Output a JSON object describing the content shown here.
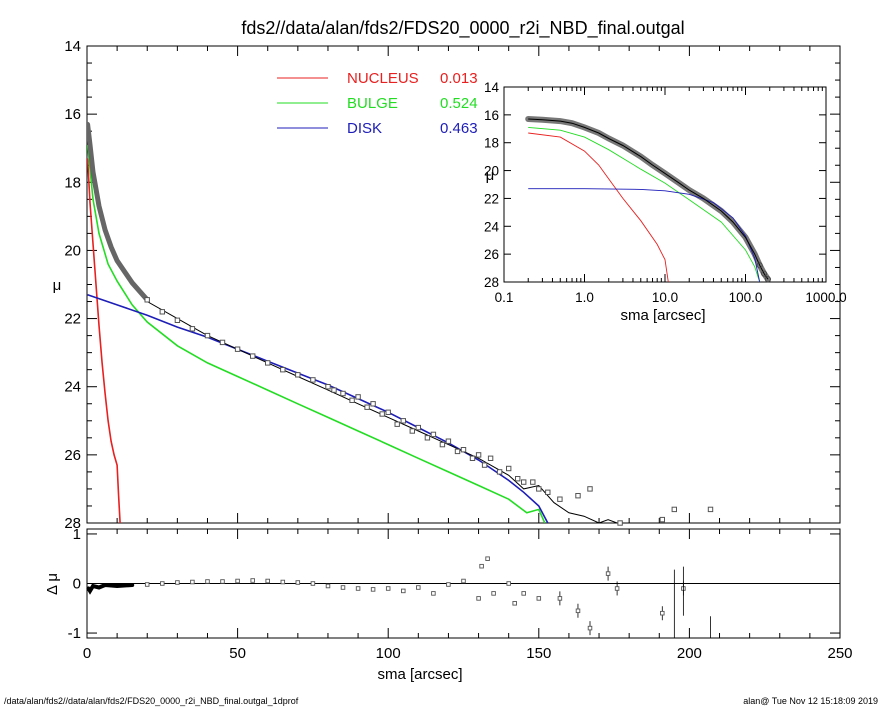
{
  "title": "fds2//data/alan/fds2/FDS20_0000_r2i_NBD_final.outgal",
  "footer_left": "/data/alan/fds2//data/alan/fds2/FDS20_0000_r2i_NBD_final.outgal_1dprof",
  "footer_right": "alan@  Tue Nov 12 15:18:09 2019",
  "colors": {
    "nucleus": "#e8201f",
    "bulge": "#22dd22",
    "disk": "#1d1db8",
    "total": "#000000",
    "data": "#555555"
  },
  "legend": [
    {
      "label": "NUCLEUS",
      "value": "0.013",
      "color": "#e8201f"
    },
    {
      "label": "BULGE",
      "value": "0.524",
      "color": "#22dd22"
    },
    {
      "label": "DISK",
      "value": "0.463",
      "color": "#1d1db8"
    }
  ],
  "chart_data": [
    {
      "type": "line",
      "xlabel": "",
      "ylabel": "μ",
      "xlim": [
        0,
        250
      ],
      "ylim": [
        28,
        14
      ],
      "xticks": [
        0,
        50,
        100,
        150,
        200,
        250
      ],
      "yticks": [
        14,
        16,
        18,
        20,
        22,
        24,
        26,
        28
      ],
      "ytick_labels": [
        "14",
        "16",
        "18",
        "20",
        "22",
        "24",
        "26",
        "28"
      ],
      "series": [
        {
          "name": "NUCLEUS 0.013",
          "x": [
            0.2,
            1,
            2,
            3,
            4,
            5,
            6,
            7,
            8,
            9,
            10,
            10.5,
            11
          ],
          "y": [
            17.3,
            18.6,
            19.8,
            21.0,
            22.2,
            23.3,
            24.2,
            25.0,
            25.6,
            26.0,
            26.3,
            27.2,
            28.0
          ]
        },
        {
          "name": "BULGE 0.524",
          "x": [
            0.2,
            1,
            2,
            4,
            7,
            10,
            15,
            20,
            30,
            40,
            50,
            60,
            70,
            80,
            90,
            100,
            110,
            120,
            130,
            140,
            146,
            150,
            152
          ],
          "y": [
            16.9,
            17.6,
            18.5,
            19.5,
            20.4,
            20.9,
            21.6,
            22.1,
            22.8,
            23.3,
            23.7,
            24.1,
            24.5,
            24.9,
            25.3,
            25.7,
            26.1,
            26.5,
            26.9,
            27.3,
            27.7,
            27.6,
            28.0
          ]
        },
        {
          "name": "DISK 0.463",
          "x": [
            0.2,
            10,
            20,
            30,
            40,
            50,
            60,
            70,
            80,
            90,
            100,
            110,
            120,
            130,
            140,
            145,
            150,
            153
          ],
          "y": [
            21.3,
            21.6,
            21.9,
            22.25,
            22.55,
            22.9,
            23.25,
            23.6,
            23.95,
            24.35,
            24.75,
            25.2,
            25.65,
            26.15,
            26.75,
            27.1,
            27.5,
            28.0
          ]
        },
        {
          "name": "",
          "x": [
            0.2,
            1,
            2,
            4,
            7,
            10,
            15,
            20,
            30,
            40,
            50,
            60,
            70,
            80,
            90,
            100,
            110,
            120,
            130,
            140,
            145,
            150,
            155,
            160,
            165,
            170,
            173,
            176
          ],
          "y": [
            16.3,
            17.0,
            17.8,
            18.8,
            19.7,
            20.3,
            21.0,
            21.5,
            22.0,
            22.5,
            22.9,
            23.3,
            23.7,
            24.1,
            24.5,
            24.9,
            25.3,
            25.7,
            26.1,
            26.6,
            27.0,
            26.9,
            27.4,
            27.7,
            27.8,
            28.0,
            27.9,
            28.0
          ]
        },
        {
          "name": "",
          "x": [
            0.2,
            1,
            2,
            3,
            4,
            6,
            8,
            10,
            15,
            20,
            25,
            30,
            35,
            40,
            45,
            50,
            55,
            60,
            65,
            70,
            75,
            80,
            82,
            85,
            88,
            90,
            93,
            95,
            98,
            100,
            103,
            105,
            108,
            110,
            113,
            115,
            118,
            120,
            123,
            125,
            128,
            130,
            132,
            134,
            137,
            140,
            143,
            145,
            148,
            150,
            153,
            157,
            163,
            167,
            177,
            191,
            195,
            207
          ],
          "y": [
            16.3,
            16.9,
            17.7,
            18.2,
            18.7,
            19.4,
            19.9,
            20.3,
            20.95,
            21.45,
            21.8,
            22.05,
            22.3,
            22.5,
            22.7,
            22.9,
            23.1,
            23.3,
            23.5,
            23.65,
            23.8,
            24.0,
            24.1,
            24.2,
            24.4,
            24.3,
            24.6,
            24.5,
            24.8,
            24.75,
            25.1,
            25.0,
            25.3,
            25.2,
            25.5,
            25.4,
            25.7,
            25.6,
            25.9,
            25.85,
            26.1,
            26.0,
            26.3,
            26.1,
            26.5,
            26.4,
            26.7,
            26.8,
            26.8,
            27.0,
            27.1,
            27.3,
            27.2,
            27.0,
            28.0,
            27.9,
            27.6,
            27.6
          ]
        }
      ]
    },
    {
      "type": "scatter",
      "xlabel": "sma [arcsec]",
      "ylabel": "Δ μ",
      "xlim": [
        0,
        250
      ],
      "ylim": [
        -1.1,
        1.1
      ],
      "xticks": [
        0,
        50,
        100,
        150,
        200,
        250
      ],
      "yticks": [
        -1,
        0,
        1
      ],
      "x": [
        0.5,
        1,
        2,
        4,
        6,
        10,
        15,
        20,
        25,
        30,
        35,
        40,
        45,
        50,
        55,
        60,
        65,
        70,
        75,
        80,
        85,
        90,
        95,
        100,
        105,
        110,
        115,
        120,
        125,
        130,
        131,
        133,
        135,
        140,
        142,
        145,
        150,
        157,
        163,
        167,
        173,
        176,
        191,
        198
      ],
      "y": [
        -0.1,
        -0.15,
        -0.05,
        -0.08,
        -0.03,
        -0.05,
        -0.03,
        -0.02,
        0.0,
        0.02,
        0.03,
        0.04,
        0.04,
        0.05,
        0.06,
        0.05,
        0.03,
        0.02,
        0.0,
        -0.05,
        -0.08,
        -0.1,
        -0.12,
        -0.1,
        -0.15,
        -0.08,
        -0.2,
        -0.02,
        0.05,
        -0.3,
        0.35,
        0.5,
        -0.2,
        0.0,
        -0.4,
        -0.2,
        -0.3,
        -0.3,
        -0.55,
        -0.9,
        0.2,
        -0.1,
        -0.6,
        -0.1
      ]
    },
    {
      "type": "line",
      "xlabel": "sma [arcsec]",
      "ylabel": "μ",
      "xscale": "log",
      "xlim": [
        0.1,
        1000
      ],
      "ylim": [
        28,
        14
      ],
      "xticks": [
        0.1,
        1,
        10,
        100,
        1000
      ],
      "xtick_labels": [
        "0.1",
        "1.0",
        "10.0",
        "100.0",
        "1000.0"
      ],
      "yticks": [
        14,
        16,
        18,
        20,
        22,
        24,
        26,
        28
      ],
      "ytick_labels": [
        "14",
        "16",
        "18",
        "20",
        "22",
        "24",
        "26",
        "28"
      ],
      "series": [
        {
          "name": "NUCLEUS",
          "x": [
            0.2,
            0.5,
            1,
            1.5,
            2,
            3,
            5,
            8,
            10,
            11
          ],
          "y": [
            17.3,
            17.6,
            18.6,
            19.6,
            20.6,
            22.0,
            23.6,
            25.3,
            26.4,
            28.0
          ]
        },
        {
          "name": "BULGE",
          "x": [
            0.2,
            0.5,
            1,
            2,
            5,
            10,
            20,
            50,
            100,
            130,
            150
          ],
          "y": [
            16.9,
            17.1,
            17.6,
            18.5,
            19.9,
            20.9,
            22.1,
            23.7,
            25.7,
            26.9,
            28.0
          ]
        },
        {
          "name": "DISK",
          "x": [
            0.2,
            1,
            5,
            10,
            20,
            40,
            70,
            100,
            130,
            150
          ],
          "y": [
            21.3,
            21.3,
            21.35,
            21.45,
            21.7,
            22.3,
            23.4,
            24.7,
            26.3,
            28.0
          ]
        },
        {
          "name": "",
          "x": [
            0.2,
            0.3,
            0.5,
            0.7,
            1,
            1.5,
            2,
            3,
            5,
            7,
            10,
            15,
            20,
            30,
            50,
            70,
            100,
            130,
            150,
            170,
            190
          ],
          "y": [
            16.3,
            16.35,
            16.45,
            16.6,
            16.9,
            17.3,
            17.7,
            18.2,
            19.0,
            19.6,
            20.2,
            20.9,
            21.4,
            22.0,
            22.9,
            23.7,
            24.8,
            26.0,
            26.8,
            27.4,
            27.8
          ]
        }
      ]
    }
  ]
}
